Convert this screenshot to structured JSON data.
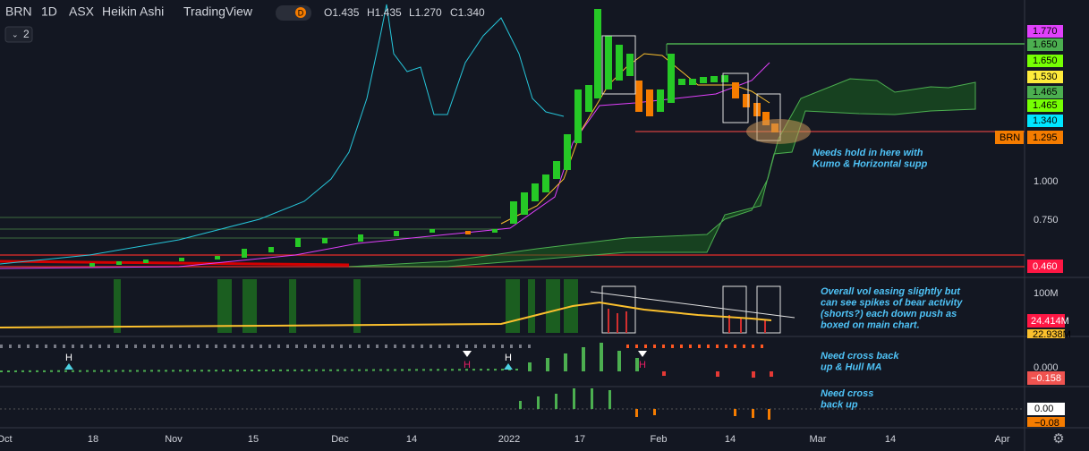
{
  "header": {
    "symbol": "BRN",
    "interval": "1D",
    "exchange": "ASX",
    "style": "Heikin Ashi",
    "source": "TradingView",
    "badge": "D",
    "ohlc": [
      "O1.435",
      "H1.435",
      "L1.270",
      "C1.340"
    ],
    "collapse": "2"
  },
  "price_labels": [
    {
      "text": "1.770",
      "color": "#e040fb"
    },
    {
      "text": "1.650",
      "color": "#4caf50"
    },
    {
      "text": "1.650",
      "color": "#76ff03"
    },
    {
      "text": "1.530",
      "color": "#ffeb3b"
    },
    {
      "text": "1.465",
      "color": "#4caf50"
    },
    {
      "text": "1.465",
      "color": "#76ff03"
    },
    {
      "text": "1.340",
      "color": "#00e5ff"
    }
  ],
  "symbol_tag": {
    "name": "BRN",
    "price": "1.295"
  },
  "low_label": "0.460",
  "price_axis": [
    "1.000",
    "0.750"
  ],
  "volume_axis": [
    "100M",
    "24.414M",
    "22.938M"
  ],
  "osc1_axis": [
    "0.000",
    "−0.158"
  ],
  "osc2_axis": [
    "0.00",
    "−0.08"
  ],
  "time_axis": [
    "Oct",
    "18",
    "Nov",
    "15",
    "Dec",
    "14",
    "2022",
    "17",
    "Feb",
    "14",
    "Mar",
    "14",
    "Apr"
  ],
  "markers": [
    "H",
    "H",
    "H",
    "H"
  ],
  "annotations": {
    "main": [
      "Needs hold in here with",
      "Kumo & Horizontal supp"
    ],
    "volume": [
      "Overall vol easing slightly but",
      "can see spikes of bear activity",
      "(shorts?) each down push as",
      "boxed on main chart."
    ],
    "osc1": [
      "Need cross back",
      "up & Hull MA"
    ],
    "osc2": [
      "Need cross",
      "back up"
    ]
  }
}
